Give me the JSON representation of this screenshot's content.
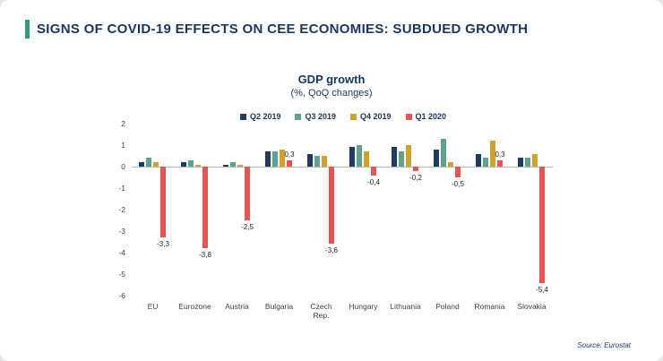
{
  "header": {
    "title": "SIGNS OF COVID-19 EFFECTS ON CEE ECONOMIES: SUBDUED GROWTH",
    "accent_color": "#2f9e77"
  },
  "chart": {
    "title": "GDP growth",
    "subtitle": "(%, QoQ changes)",
    "source": "Source: Eurostat"
  },
  "chart_data": {
    "type": "bar",
    "title": "GDP growth",
    "subtitle": "(%, QoQ changes)",
    "categories": [
      "EU",
      "Eurozone",
      "Austria",
      "Bulgaria",
      "Czech\nRep.",
      "Hungary",
      "Lithuania",
      "Poland",
      "Romania",
      "Slovakia"
    ],
    "series": [
      {
        "name": "Q2 2019",
        "color": "#1f3c5f",
        "values": [
          0.2,
          0.2,
          0.1,
          0.7,
          0.6,
          0.9,
          0.9,
          0.8,
          0.6,
          0.4
        ]
      },
      {
        "name": "Q3 2019",
        "color": "#5ea28d",
        "values": [
          0.4,
          0.3,
          0.2,
          0.7,
          0.5,
          1.0,
          0.7,
          1.3,
          0.4,
          0.4
        ]
      },
      {
        "name": "Q4 2019",
        "color": "#cfa42c",
        "values": [
          0.2,
          0.1,
          0.1,
          0.8,
          0.5,
          0.7,
          1.0,
          0.2,
          1.2,
          0.6
        ]
      },
      {
        "name": "Q1 2020",
        "color": "#e8544f",
        "values": [
          -3.3,
          -3.8,
          -2.5,
          0.3,
          -3.6,
          -0.4,
          -0.2,
          -0.5,
          0.3,
          -5.4
        ]
      }
    ],
    "value_labels": [
      "-3,3",
      "-3,8",
      "-2,5",
      "0,3",
      "-3,6",
      "-0,4",
      "-0,2",
      "-0,5",
      "0,3",
      "-5,4"
    ],
    "ylim": [
      -6,
      2
    ],
    "yticks": [
      2,
      1,
      0,
      -1,
      -2,
      -3,
      -4,
      -5,
      -6
    ],
    "legend_position": "top",
    "grid": false
  }
}
